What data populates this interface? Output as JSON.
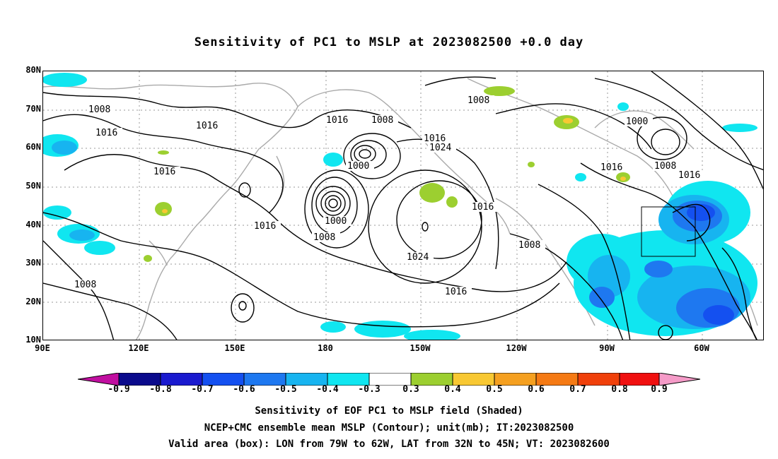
{
  "title": "Sensitivity of PC1 to MSLP at 2023082500 +0.0 day",
  "lat_labels": [
    "80N",
    "70N",
    "60N",
    "50N",
    "40N",
    "30N",
    "20N",
    "10N"
  ],
  "lon_labels": [
    "90E",
    "120E",
    "150E",
    "180",
    "150W",
    "120W",
    "90W",
    "60W"
  ],
  "contour_labels": [
    "1008",
    "1016",
    "1016",
    "1016",
    "1008",
    "1016",
    "1016",
    "1024",
    "1000",
    "1016",
    "1000",
    "1008",
    "1016",
    "1024",
    "1016",
    "1008",
    "1008",
    "1016",
    "1000",
    "1008",
    "1016",
    "1008"
  ],
  "colorbar": {
    "ticks": [
      "-0.9",
      "-0.8",
      "-0.7",
      "-0.6",
      "-0.5",
      "-0.4",
      "-0.3",
      "0.3",
      "0.4",
      "0.5",
      "0.6",
      "0.7",
      "0.8",
      "0.9"
    ],
    "colors": [
      "#c10fa0",
      "#0a0a8c",
      "#1a1acf",
      "#1450f0",
      "#1e78f0",
      "#17b4f0",
      "#10e6f0",
      "#ffffff",
      "#9ccf30",
      "#f8c832",
      "#f5a020",
      "#f57a14",
      "#f0400a",
      "#f01010",
      "#f59bc8"
    ]
  },
  "captions": [
    "Sensitivity of EOF PC1 to MSLP field (Shaded)",
    "NCEP+CMC ensemble mean MSLP (Contour); unit(mb); IT:2023082500",
    "Valid area (box): LON from 79W to 62W, LAT from 32N to 45N; VT: 2023082600"
  ]
}
